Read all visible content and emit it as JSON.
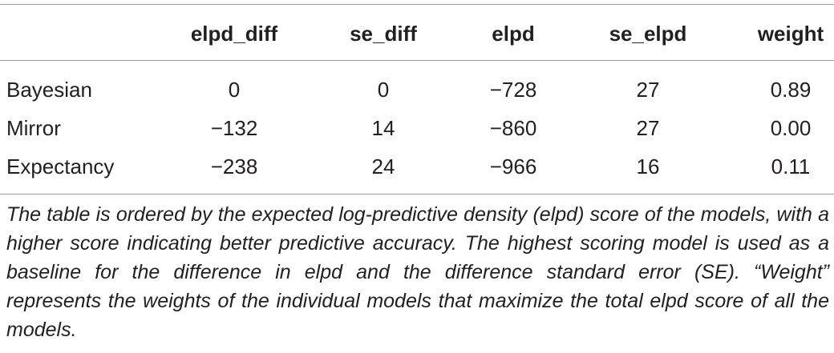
{
  "table": {
    "columns": [
      "elpd_diff",
      "se_diff",
      "elpd",
      "se_elpd",
      "weight"
    ],
    "rows": [
      {
        "label": "Bayesian",
        "cells": [
          "0",
          "0",
          "−728",
          "27",
          "0.89"
        ]
      },
      {
        "label": "Mirror",
        "cells": [
          "−132",
          "14",
          "−860",
          "27",
          "0.00"
        ]
      },
      {
        "label": "Expectancy",
        "cells": [
          "−238",
          "24",
          "−966",
          "16",
          "0.11"
        ]
      }
    ],
    "caption": "The table is ordered by the expected log-predictive density (elpd) score of the models, with a higher score indicating better predictive accuracy. The highest scoring model is used as a baseline for the difference in elpd and the difference standard error (SE). “Weight” represents the weights of the individual models that maximize the total elpd score of all the models."
  }
}
